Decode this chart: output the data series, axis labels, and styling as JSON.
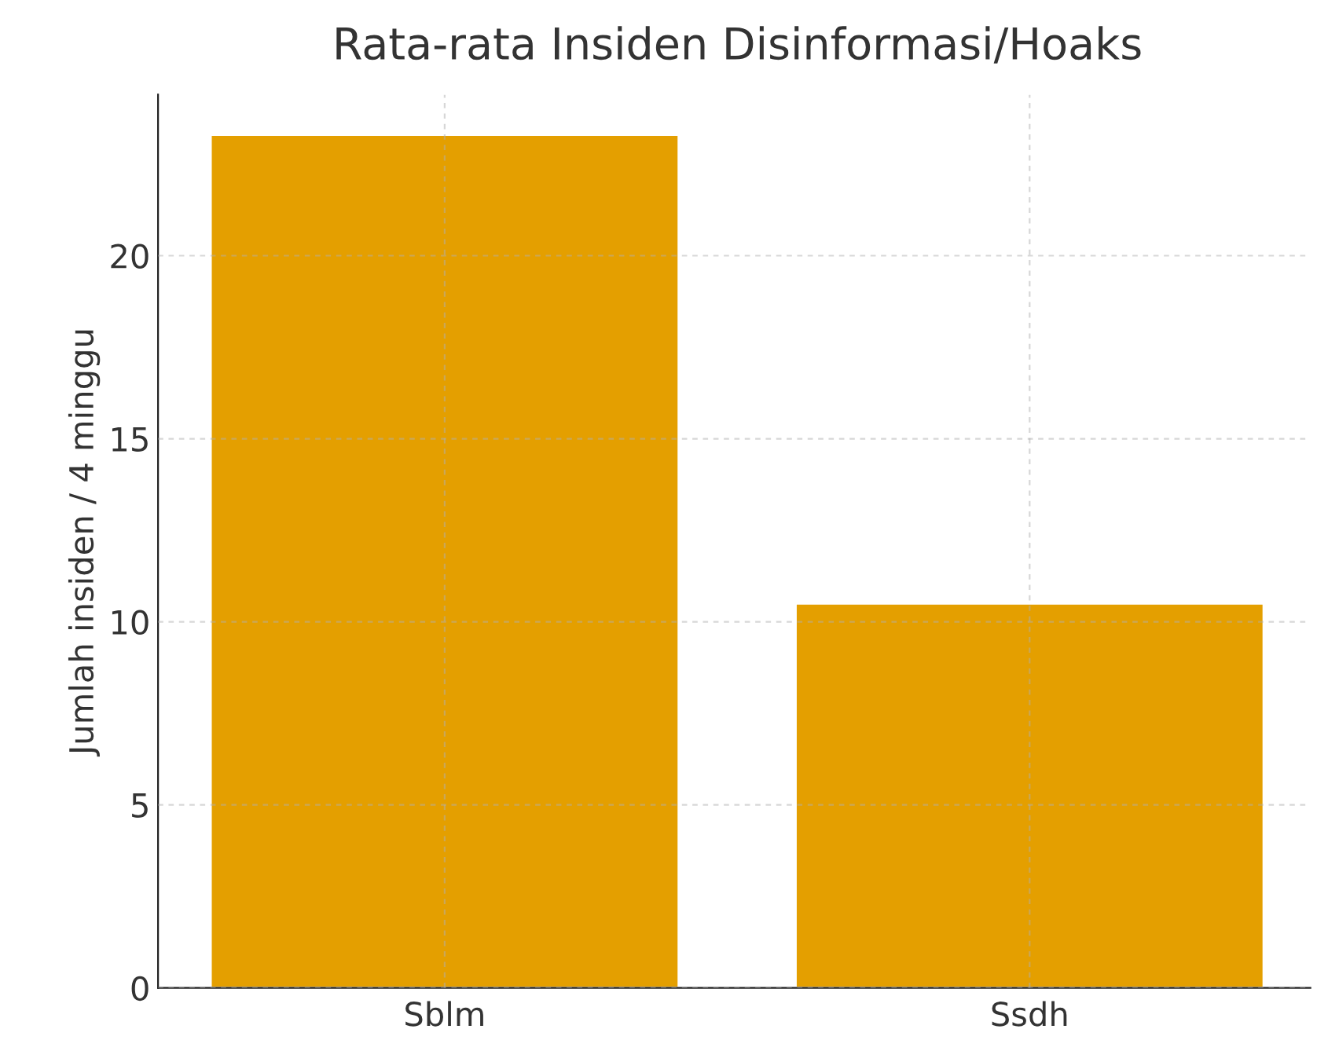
{
  "chart_data": {
    "type": "bar",
    "title": "Rata-rata Insiden Disinformasi/Hoaks",
    "ylabel": "Jumlah insiden / 4 minggu",
    "categories": [
      "Sblm",
      "Ssdh"
    ],
    "series": [
      {
        "color": "#e49f00",
        "values": [
          23.3,
          10.5
        ]
      }
    ],
    "ylim": [
      0,
      24.4
    ],
    "yticks": [
      0,
      5,
      10,
      15,
      20
    ],
    "grid": true
  }
}
